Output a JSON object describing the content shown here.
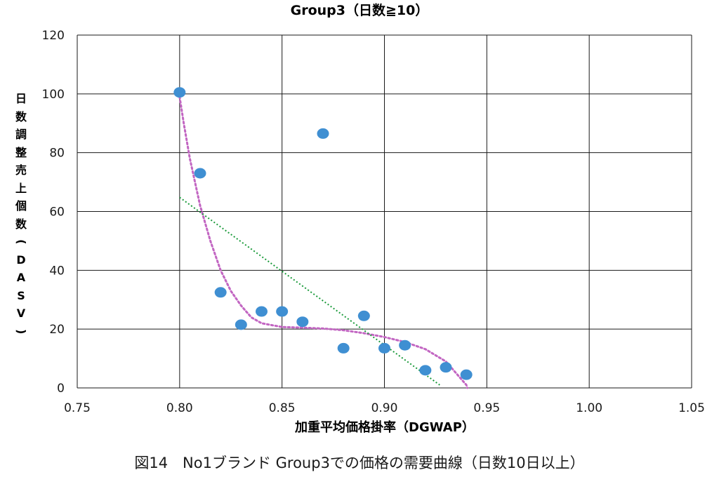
{
  "chart_data": {
    "type": "scatter",
    "title": "Group3（日数≧10）",
    "xlabel": "加重平均価格掛率（DGWAP）",
    "ylabel": "日数調整売上個数（DASV）",
    "xlim": [
      0.75,
      1.05
    ],
    "ylim": [
      0,
      120
    ],
    "xticks": [
      "0.75",
      "0.80",
      "0.85",
      "0.90",
      "0.95",
      "1.00",
      "1.05"
    ],
    "yticks": [
      "0",
      "20",
      "40",
      "60",
      "80",
      "100",
      "120"
    ],
    "grid": true,
    "points": [
      {
        "x": 0.8,
        "y": 100.5
      },
      {
        "x": 0.81,
        "y": 73
      },
      {
        "x": 0.82,
        "y": 32.5
      },
      {
        "x": 0.83,
        "y": 21.5
      },
      {
        "x": 0.84,
        "y": 26
      },
      {
        "x": 0.85,
        "y": 26
      },
      {
        "x": 0.86,
        "y": 22.5
      },
      {
        "x": 0.87,
        "y": 86.5
      },
      {
        "x": 0.88,
        "y": 13.5
      },
      {
        "x": 0.89,
        "y": 24.5
      },
      {
        "x": 0.9,
        "y": 13.5
      },
      {
        "x": 0.91,
        "y": 14.5
      },
      {
        "x": 0.92,
        "y": 6
      },
      {
        "x": 0.93,
        "y": 7
      },
      {
        "x": 0.94,
        "y": 4.5
      }
    ],
    "linear_trend": {
      "x": [
        0.8,
        0.927
      ],
      "y": [
        64.8,
        1
      ]
    },
    "poly_trend": {
      "x": [
        0.8,
        0.802,
        0.805,
        0.81,
        0.815,
        0.82,
        0.825,
        0.83,
        0.835,
        0.84,
        0.85,
        0.86,
        0.87,
        0.88,
        0.89,
        0.9,
        0.91,
        0.92,
        0.93,
        0.935,
        0.94,
        0.9405
      ],
      "y": [
        99,
        90,
        78,
        62,
        50,
        40,
        33,
        28,
        24,
        22,
        20.7,
        20.5,
        20.2,
        19.6,
        18.6,
        17.3,
        15.6,
        13.2,
        9,
        5,
        1,
        0
      ]
    },
    "colors": {
      "points": "#3f8fd2",
      "linear_trend": "#1a9a3a",
      "poly_trend": "#c266c2",
      "grid": "#1a1a1a"
    }
  },
  "caption": "図14　No1ブランド Group3での価格の需要曲線（日数10日以上）"
}
